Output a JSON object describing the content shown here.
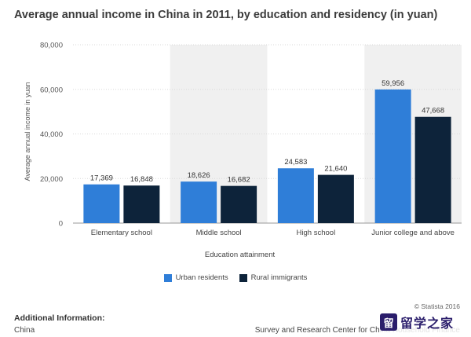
{
  "title": "Average annual income in China in 2011, by education and residency (in yuan)",
  "chart_data": {
    "type": "bar",
    "categories": [
      "Elementary school",
      "Middle school",
      "High school",
      "Junior college and above"
    ],
    "series": [
      {
        "name": "Urban residents",
        "values": [
          17369,
          18626,
          24583,
          59956
        ],
        "labels": [
          "17,369",
          "18,626",
          "24,583",
          "59,956"
        ],
        "color": "#2f7ed8"
      },
      {
        "name": "Rural immigrants",
        "values": [
          16848,
          16682,
          21640,
          47668
        ],
        "labels": [
          "16,848",
          "16,682",
          "21,640",
          "47,668"
        ],
        "color": "#0d233a"
      }
    ],
    "xlabel": "Education attainment",
    "ylabel": "Average annual income in yuan",
    "ylim": [
      0,
      80000
    ],
    "yticks": [
      0,
      20000,
      40000,
      60000,
      80000
    ],
    "ytick_labels": [
      "0",
      "20,000",
      "40,000",
      "60,000",
      "80,000"
    ],
    "grid": true,
    "legend_position": "bottom",
    "band_color": "#f0f0f0"
  },
  "footer": {
    "copyright": "© Statista 2016",
    "additional_info_title": "Additional Information:",
    "region": "China",
    "source": "Survey and Research Center for China Household Finance"
  },
  "watermark": {
    "text": "留学之家",
    "logo_glyph": "留"
  }
}
